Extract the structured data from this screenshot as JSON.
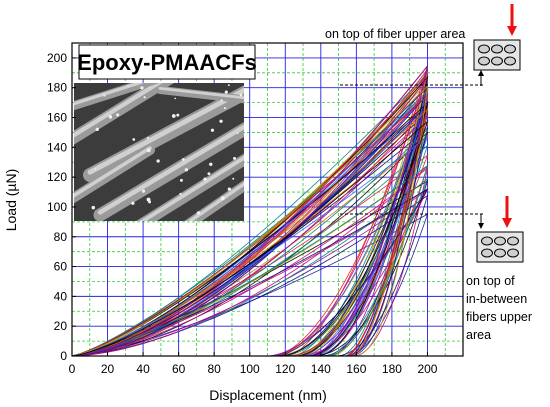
{
  "chart_data": {
    "type": "line",
    "title": "Epoxy-PMAACFs",
    "xlabel": "Displacement (nm)",
    "ylabel": "Load (µN)",
    "xlim": [
      0,
      220
    ],
    "ylim": [
      0,
      210
    ],
    "x_ticks": [
      0,
      20,
      40,
      60,
      80,
      100,
      120,
      140,
      160,
      180,
      200
    ],
    "y_ticks": [
      0,
      20,
      40,
      60,
      80,
      100,
      120,
      140,
      160,
      180,
      200
    ],
    "grid": true,
    "grid_major_color": "#2222dd",
    "grid_minor_color": "#33cc33",
    "legend": "none",
    "series_description": "~60 nanoindentation load-displacement curves; loading from 0 to max depth 200 nm, peak loads 95-195 µN, unloading to residual depth ~110-160 nm",
    "max_depth_nm": 200,
    "peak_load_range": [
      95,
      195
    ],
    "unload_residual_depth_range": [
      110,
      160
    ],
    "curve_colors": [
      "#1a1aa0",
      "#c8007d",
      "#e02020",
      "#0a0a6a",
      "#d07000",
      "#008080",
      "#8a0aa0",
      "#3060ff",
      "#c8a000",
      "#000000"
    ],
    "annotations": [
      {
        "text": "on top of fiber upper area",
        "y_ref": 190
      },
      {
        "text": "on top of in-between fibers upper area",
        "y_ref": 100
      }
    ],
    "inset": "SEM micrograph of fibers"
  },
  "annotations": {
    "top_label": "on top of fiber upper area",
    "bottom_lines": [
      "on top of",
      "in-between",
      "fibers upper",
      "area"
    ]
  }
}
